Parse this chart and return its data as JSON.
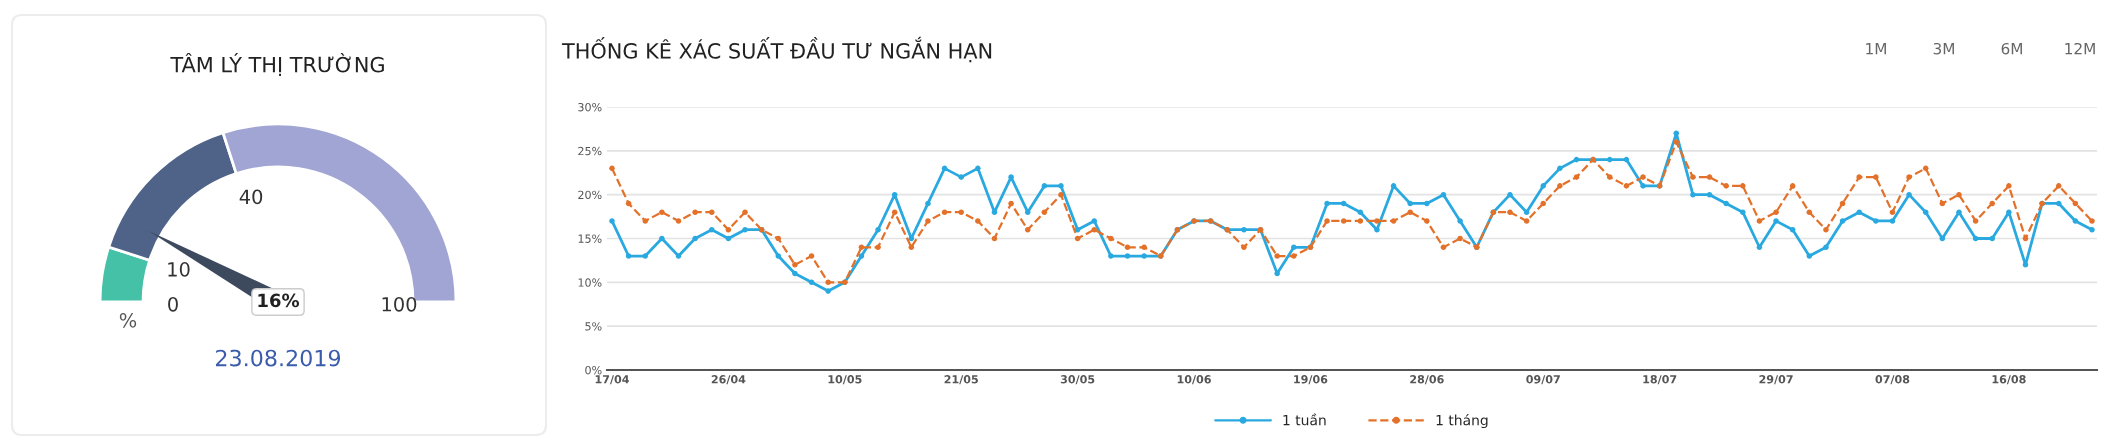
{
  "chart_data": [
    {
      "type": "donut",
      "title": "TÂM LÝ THỊ TRƯỜNG",
      "ylabel": "%",
      "categories": [
        "0",
        "10",
        "40"
      ],
      "values": [
        10,
        30,
        60
      ],
      "colors": [
        "#45c1a8",
        "#4f6389",
        "#a1a5d3"
      ],
      "needle": "10",
      "annotations": [
        "16%",
        "23.08.2019",
        "100"
      ]
    },
    {
      "type": "line",
      "title": "THỐNG KÊ XÁC SUẤT ĐẦU TƯ NGẮN HẠN",
      "categories": [
        "17/04",
        null,
        null,
        null,
        null,
        null,
        null,
        "26/04",
        null,
        null,
        null,
        null,
        null,
        null,
        "10/05",
        null,
        null,
        null,
        null,
        null,
        null,
        "21/05",
        null,
        null,
        null,
        null,
        null,
        null,
        "30/05",
        null,
        null,
        null,
        null,
        null,
        null,
        "10/06",
        null,
        null,
        null,
        null,
        null,
        null,
        "19/06",
        null,
        null,
        null,
        null,
        null,
        null,
        "28/06",
        null,
        null,
        null,
        null,
        null,
        null,
        "09/07",
        null,
        null,
        null,
        null,
        null,
        null,
        "18/07",
        null,
        null,
        null,
        null,
        null,
        null,
        "29/07",
        null,
        null,
        null,
        null,
        null,
        null,
        "07/08",
        null,
        null,
        null,
        null,
        null,
        null,
        "16/08",
        null,
        null,
        null,
        null,
        null
      ],
      "series": [
        {
          "name": "1 tuần",
          "color": "#29a9e0",
          "line_style": "solid",
          "values": [
            17,
            13,
            13,
            15,
            13,
            15,
            16,
            15,
            16,
            16,
            13,
            11,
            10,
            9,
            10,
            13,
            16,
            20,
            15,
            19,
            23,
            22,
            23,
            18,
            22,
            18,
            21,
            21,
            16,
            17,
            13,
            13,
            13,
            13,
            16,
            17,
            17,
            16,
            16,
            16,
            11,
            14,
            14,
            19,
            19,
            18,
            16,
            21,
            19,
            19,
            20,
            17,
            14,
            18,
            20,
            18,
            21,
            23,
            24,
            24,
            24,
            24,
            21,
            21,
            27,
            20,
            20,
            19,
            18,
            14,
            17,
            16,
            13,
            14,
            17,
            18,
            17,
            17,
            20,
            18,
            15,
            18,
            15,
            15,
            18,
            12,
            19,
            19,
            17,
            16
          ]
        },
        {
          "name": "1 tháng",
          "color": "#e3712a",
          "line_style": "dashed",
          "values": [
            23,
            19,
            17,
            18,
            17,
            18,
            18,
            16,
            18,
            16,
            15,
            12,
            13,
            10,
            10,
            14,
            14,
            18,
            14,
            17,
            18,
            18,
            17,
            15,
            19,
            16,
            18,
            20,
            15,
            16,
            15,
            14,
            14,
            13,
            16,
            17,
            17,
            16,
            14,
            16,
            13,
            13,
            14,
            17,
            17,
            17,
            17,
            17,
            18,
            17,
            14,
            15,
            14,
            18,
            18,
            17,
            19,
            21,
            22,
            24,
            22,
            21,
            22,
            21,
            26,
            22,
            22,
            21,
            21,
            17,
            18,
            21,
            18,
            16,
            19,
            22,
            22,
            18,
            22,
            23,
            19,
            20,
            17,
            19,
            21,
            15,
            19,
            21,
            19,
            17
          ]
        }
      ],
      "ylim": [
        0,
        30
      ],
      "yticks": [
        {
          "value": 0,
          "label": "0%"
        },
        {
          "value": 5,
          "label": "5%"
        },
        {
          "value": 10,
          "label": "10%"
        },
        {
          "value": 15,
          "label": "15%"
        },
        {
          "value": 20,
          "label": "20%"
        },
        {
          "value": 25,
          "label": "25%"
        },
        {
          "value": 30,
          "label": "30%"
        }
      ],
      "grid": "y",
      "legend": "bottom",
      "marker": "circle",
      "annotations": [
        "1M",
        "3M",
        "6M",
        "12M"
      ]
    }
  ]
}
